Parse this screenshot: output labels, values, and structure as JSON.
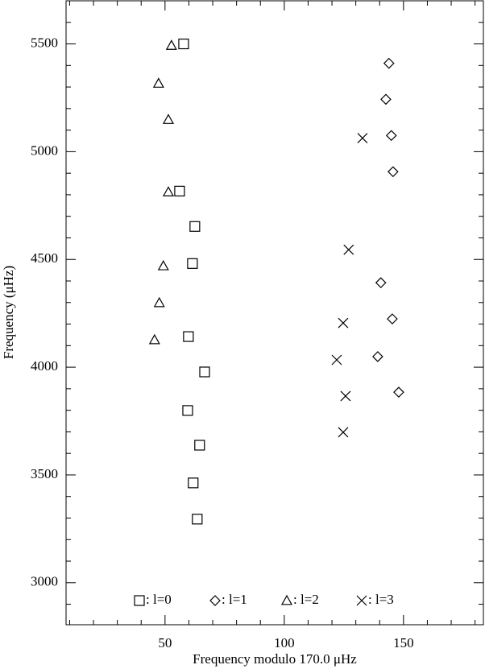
{
  "chart_data": {
    "type": "scatter",
    "x_label": "Frequency modulo 170.0 μHz",
    "y_label": "Frequency (μHz)",
    "xlim": [
      8.5,
      183.5
    ],
    "ylim": [
      2805,
      5700
    ],
    "xticks": [
      50,
      100,
      150
    ],
    "yticks": [
      3000,
      3500,
      4000,
      4500,
      5000,
      5500
    ],
    "xminorticks": [
      10,
      20,
      30,
      40,
      60,
      70,
      80,
      90,
      110,
      120,
      130,
      140,
      160,
      170,
      180
    ],
    "yminorticks": [
      2900,
      3100,
      3200,
      3300,
      3400,
      3600,
      3700,
      3800,
      3900,
      4100,
      4200,
      4300,
      4400,
      4600,
      4700,
      4800,
      4900,
      5100,
      5200,
      5300,
      5400,
      5600,
      5700
    ],
    "legend": "bottom",
    "color": "#000000",
    "series": [
      {
        "name": ": l=0",
        "marker": "square",
        "x": [
          57.8,
          56.1,
          62.5,
          61.5,
          59.8,
          66.6,
          59.5,
          64.5,
          61.8,
          63.5
        ],
        "values": [
          5500,
          4817,
          4653,
          4481,
          4142,
          3978,
          3799,
          3638,
          3463,
          3295
        ]
      },
      {
        "name": ": l=1",
        "marker": "diamond",
        "x": [
          143.9,
          142.6,
          144.9,
          145.6,
          140.5,
          145.3,
          139.2,
          148.0
        ],
        "values": [
          5410,
          5243,
          5075,
          4907,
          4392,
          4224,
          4049,
          3884
        ]
      },
      {
        "name": ": l=2",
        "marker": "triangle",
        "x": [
          52.7,
          47.3,
          51.4,
          51.4,
          49.3,
          47.6,
          45.6
        ],
        "values": [
          5493,
          5317,
          5149,
          4813,
          4470,
          4299,
          4127
        ]
      },
      {
        "name": ": l=3",
        "marker": "x",
        "x": [
          132.8,
          127.0,
          124.7,
          122.0,
          125.7,
          124.7
        ],
        "values": [
          5063,
          4545,
          4205,
          4034,
          3866,
          3698
        ]
      }
    ]
  }
}
